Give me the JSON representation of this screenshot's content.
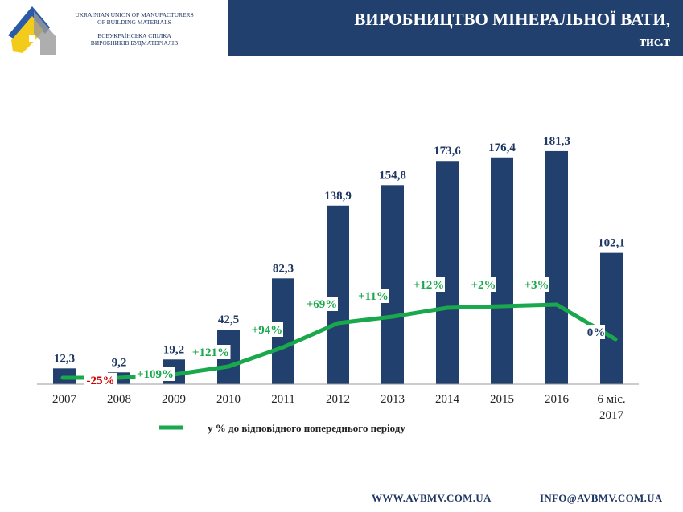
{
  "header": {
    "org_en": [
      "UKRAINIAN UNION OF MANUFACTURERS",
      "OF BUILDING MATERIALS"
    ],
    "org_ua": [
      "ВСЕУКРАЇНСЬКА СПІЛКА",
      "ВИРОБНИКІВ БУДМАТЕРІАЛІВ"
    ],
    "title_line1": "ВИРОБНИЦТВО МІНЕРАЛЬНОЇ ВАТИ,",
    "title_line2": "тис.т"
  },
  "footer": {
    "website": "WWW.AVBMV.COM.UA",
    "email": "INFO@AVBMV.COM.UA"
  },
  "colors": {
    "bar": "#22406e",
    "line": "#1aa84c",
    "negative": "#cc0000",
    "banner": "#22406e"
  },
  "chart_data": {
    "type": "bar",
    "categories": [
      "2007",
      "2008",
      "2009",
      "2010",
      "2011",
      "2012",
      "2013",
      "2014",
      "2015",
      "2016",
      "6 міс. 2017"
    ],
    "series": [
      {
        "values": [
          12.3,
          9.2,
          19.2,
          42.5,
          82.3,
          138.9,
          154.8,
          173.6,
          176.4,
          181.3,
          102.1
        ],
        "labels": [
          "12,3",
          "9,2",
          "19,2",
          "42,5",
          "82,3",
          "138,9",
          "154,8",
          "173,6",
          "176,4",
          "181,3",
          "102,1"
        ]
      },
      {
        "name": "у % до відповідного попереднього періоду",
        "type": "line",
        "labels": [
          "-25%",
          "+109%",
          "+121%",
          "+94%",
          "+69%",
          "+11%",
          "+12%",
          "+2%",
          "+3%",
          "0%"
        ]
      }
    ],
    "ylim": [
      0,
      200
    ],
    "grid": false,
    "legend": "bottom-left"
  }
}
